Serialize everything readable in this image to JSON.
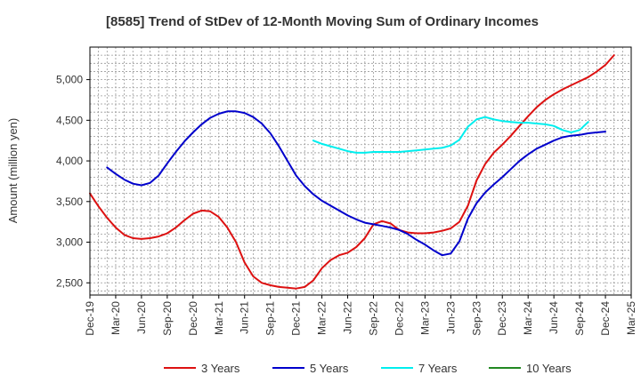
{
  "chart_data": {
    "type": "line",
    "title": "[8585]  Trend of StDev of 12-Month Moving Sum of Ordinary Incomes",
    "xlabel": "",
    "ylabel": "Amount (million yen)",
    "ylim": [
      2350,
      5400
    ],
    "yticks": [
      2500,
      3000,
      3500,
      4000,
      4500,
      5000
    ],
    "ytick_labels": [
      "2,500",
      "3,000",
      "3,500",
      "4,000",
      "4,500",
      "5,000"
    ],
    "x_start": "Dec-19",
    "x_range_months": [
      0,
      63
    ],
    "xtick_months": [
      0,
      3,
      6,
      9,
      12,
      15,
      18,
      21,
      24,
      27,
      30,
      33,
      36,
      39,
      42,
      45,
      48,
      51,
      54,
      57,
      60,
      63
    ],
    "xtick_labels": [
      "Dec-19",
      "Mar-20",
      "Jun-20",
      "Sep-20",
      "Dec-20",
      "Mar-21",
      "Jun-21",
      "Sep-21",
      "Dec-21",
      "Mar-22",
      "Jun-22",
      "Sep-22",
      "Dec-22",
      "Mar-23",
      "Jun-23",
      "Sep-23",
      "Dec-23",
      "Mar-24",
      "Jun-24",
      "Sep-24",
      "Dec-24",
      "Mar-25"
    ],
    "grid": true,
    "legend_position": "bottom",
    "series": [
      {
        "name": "3 Years",
        "color": "#dd1111",
        "start_month": 0,
        "values": [
          3600,
          3440,
          3300,
          3180,
          3090,
          3050,
          3040,
          3050,
          3070,
          3110,
          3180,
          3270,
          3350,
          3390,
          3380,
          3310,
          3180,
          3000,
          2750,
          2580,
          2500,
          2470,
          2450,
          2440,
          2430,
          2450,
          2530,
          2680,
          2780,
          2840,
          2870,
          2940,
          3050,
          3220,
          3260,
          3230,
          3150,
          3120,
          3110,
          3110,
          3120,
          3140,
          3170,
          3250,
          3450,
          3760,
          3960,
          4100,
          4200,
          4310,
          4430,
          4550,
          4660,
          4750,
          4820,
          4880,
          4930,
          4980,
          5030,
          5100,
          5180,
          5300
        ]
      },
      {
        "name": "5 Years",
        "color": "#0000cc",
        "start_month": 2,
        "values": [
          3920,
          3840,
          3770,
          3720,
          3700,
          3730,
          3820,
          3970,
          4110,
          4240,
          4350,
          4450,
          4530,
          4580,
          4610,
          4610,
          4590,
          4540,
          4460,
          4340,
          4180,
          4000,
          3820,
          3690,
          3590,
          3510,
          3450,
          3390,
          3330,
          3280,
          3240,
          3220,
          3200,
          3180,
          3150,
          3100,
          3030,
          2970,
          2900,
          2840,
          2860,
          3010,
          3290,
          3480,
          3610,
          3710,
          3800,
          3900,
          4000,
          4080,
          4150,
          4200,
          4250,
          4290,
          4310,
          4320,
          4340,
          4350,
          4360
        ]
      },
      {
        "name": "7 Years",
        "color": "#00eeee",
        "start_month": 26,
        "values": [
          4250,
          4210,
          4180,
          4150,
          4120,
          4100,
          4100,
          4110,
          4110,
          4110,
          4110,
          4120,
          4130,
          4140,
          4150,
          4160,
          4190,
          4260,
          4420,
          4510,
          4540,
          4510,
          4490,
          4480,
          4470,
          4470,
          4460,
          4450,
          4430,
          4380,
          4350,
          4380,
          4480
        ]
      },
      {
        "name": "10 Years",
        "color": "#228822",
        "start_month": 0,
        "values": []
      }
    ]
  }
}
